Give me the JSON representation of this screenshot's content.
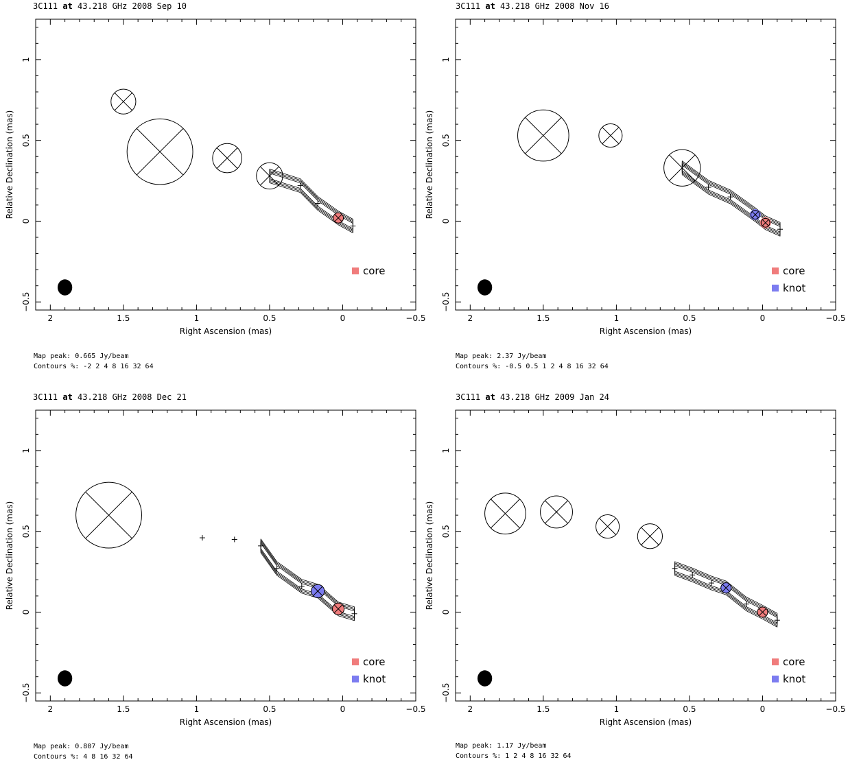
{
  "panels": [
    {
      "title_source": "3C111",
      "title_at": "at",
      "title_freq": "43.218 GHz",
      "title_date": "2008 Sep 10",
      "footer_peak": "Map peak: 0.665 Jy/beam",
      "footer_contours": "Contours %: -2 2 4 8 16 32 64",
      "legend": [
        {
          "label": "core",
          "color": "#f07c7c"
        }
      ]
    },
    {
      "title_source": "3C111",
      "title_at": "at",
      "title_freq": "43.218 GHz",
      "title_date": "2008 Nov 16",
      "footer_peak": "Map peak: 2.37 Jy/beam",
      "footer_contours": "Contours %: -0.5 0.5 1 2 4 8 16 32 64",
      "legend": [
        {
          "label": "core",
          "color": "#f07c7c"
        },
        {
          "label": "knot",
          "color": "#7c7cf0"
        }
      ]
    },
    {
      "title_source": "3C111",
      "title_at": "at",
      "title_freq": "43.218 GHz",
      "title_date": "2008 Dec 21",
      "footer_peak": "Map peak: 0.807 Jy/beam",
      "footer_contours": "Contours %: 4 8 16 32 64",
      "legend": [
        {
          "label": "core",
          "color": "#f07c7c"
        },
        {
          "label": "knot",
          "color": "#7c7cf0"
        }
      ]
    },
    {
      "title_source": "3C111",
      "title_at": "at",
      "title_freq": "43.218 GHz",
      "title_date": "2009 Jan 24",
      "footer_peak": "Map peak: 1.17 Jy/beam",
      "footer_contours": "Contours %: 1 2 4 8 16 32 64",
      "legend": [
        {
          "label": "core",
          "color": "#f07c7c"
        },
        {
          "label": "knot",
          "color": "#7c7cf0"
        }
      ]
    }
  ],
  "chart_data": [
    {
      "type": "scatter",
      "title": "3C111 at 43.218 GHz 2008 Sep 10",
      "xlabel": "Right Ascension  (mas)",
      "ylabel": "Relative Declination  (mas)",
      "xlim": [
        2.1,
        -0.5
      ],
      "ylim": [
        -0.55,
        1.25
      ],
      "xticks": [
        "2",
        "1.5",
        "1",
        "0.5",
        "0",
        "−0.5"
      ],
      "xtick_values": [
        2,
        1.5,
        1,
        0.5,
        0,
        -0.5
      ],
      "yticks": [
        "−0.5",
        "0",
        "0.5",
        "1"
      ],
      "ytick_values": [
        -0.5,
        0,
        0.5,
        1
      ],
      "beam": {
        "x": 1.9,
        "y": -0.41,
        "major": 0.1,
        "minor": 0.1
      },
      "components": [
        {
          "x": 0.03,
          "y": 0.02,
          "size": 0.07,
          "kind": "core"
        },
        {
          "x": -0.07,
          "y": -0.03,
          "size": 0.005
        },
        {
          "x": 0.17,
          "y": 0.11,
          "size": 0.02
        },
        {
          "x": 0.29,
          "y": 0.22,
          "size": 0.03
        },
        {
          "x": 0.5,
          "y": 0.28,
          "size": 0.18
        },
        {
          "x": 0.79,
          "y": 0.39,
          "size": 0.2
        },
        {
          "x": 1.25,
          "y": 0.43,
          "size": 0.45
        },
        {
          "x": 1.5,
          "y": 0.74,
          "size": 0.17
        }
      ],
      "legend": [
        "core"
      ]
    },
    {
      "type": "scatter",
      "title": "3C111 at 43.218 GHz 2008 Nov 16",
      "xlabel": "Right Ascension  (mas)",
      "ylabel": "Relative Declination  (mas)",
      "xlim": [
        2.1,
        -0.5
      ],
      "ylim": [
        -0.55,
        1.25
      ],
      "xticks": [
        "2",
        "1.5",
        "1",
        "0.5",
        "0",
        "−0.5"
      ],
      "xtick_values": [
        2,
        1.5,
        1,
        0.5,
        0,
        -0.5
      ],
      "yticks": [
        "−0.5",
        "0",
        "0.5",
        "1"
      ],
      "ytick_values": [
        -0.5,
        0,
        0.5,
        1
      ],
      "beam": {
        "x": 1.9,
        "y": -0.41,
        "major": 0.1,
        "minor": 0.1
      },
      "components": [
        {
          "x": -0.02,
          "y": -0.01,
          "size": 0.06,
          "kind": "core"
        },
        {
          "x": 0.05,
          "y": 0.04,
          "size": 0.06,
          "kind": "knot"
        },
        {
          "x": -0.12,
          "y": -0.05,
          "size": 0.005
        },
        {
          "x": 0.22,
          "y": 0.15,
          "size": 0.03
        },
        {
          "x": 0.37,
          "y": 0.21,
          "size": 0.04
        },
        {
          "x": 0.55,
          "y": 0.33,
          "size": 0.25
        },
        {
          "x": 1.04,
          "y": 0.53,
          "size": 0.16
        },
        {
          "x": 1.5,
          "y": 0.53,
          "size": 0.35
        }
      ],
      "legend": [
        "core",
        "knot"
      ]
    },
    {
      "type": "scatter",
      "title": "3C111 at 43.218 GHz 2008 Dec 21",
      "xlabel": "Right Ascension  (mas)",
      "ylabel": "Relative Declination  (mas)",
      "xlim": [
        2.1,
        -0.5
      ],
      "ylim": [
        -0.55,
        1.25
      ],
      "xticks": [
        "2",
        "1.5",
        "1",
        "0.5",
        "0",
        "−0.5"
      ],
      "xtick_values": [
        2,
        1.5,
        1,
        0.5,
        0,
        -0.5
      ],
      "yticks": [
        "−0.5",
        "0",
        "0.5",
        "1"
      ],
      "ytick_values": [
        -0.5,
        0,
        0.5,
        1
      ],
      "beam": {
        "x": 1.9,
        "y": -0.41,
        "major": 0.1,
        "minor": 0.1
      },
      "components": [
        {
          "x": 0.03,
          "y": 0.02,
          "size": 0.08,
          "kind": "core"
        },
        {
          "x": 0.17,
          "y": 0.13,
          "size": 0.09,
          "kind": "knot"
        },
        {
          "x": -0.08,
          "y": -0.01,
          "size": 0.005
        },
        {
          "x": 0.28,
          "y": 0.16,
          "size": 0.005
        },
        {
          "x": 0.45,
          "y": 0.27,
          "size": 0.04
        },
        {
          "x": 0.56,
          "y": 0.41,
          "size": 0.04
        },
        {
          "x": 0.74,
          "y": 0.45,
          "size": 0.04
        },
        {
          "x": 0.96,
          "y": 0.46,
          "size": 0.04
        },
        {
          "x": 1.6,
          "y": 0.6,
          "size": 0.45
        }
      ],
      "legend": [
        "core",
        "knot"
      ]
    },
    {
      "type": "scatter",
      "title": "3C111 at 43.218 GHz 2009 Jan 24",
      "xlabel": "Right Ascension  (mas)",
      "ylabel": "Relative Declination  (mas)",
      "xlim": [
        2.1,
        -0.5
      ],
      "ylim": [
        -0.55,
        1.25
      ],
      "xticks": [
        "2",
        "1.5",
        "1",
        "0.5",
        "0",
        "−0.5"
      ],
      "xtick_values": [
        2,
        1.5,
        1,
        0.5,
        0,
        -0.5
      ],
      "yticks": [
        "−0.5",
        "0",
        "0.5",
        "1"
      ],
      "ytick_values": [
        -0.5,
        0,
        0.5,
        1
      ],
      "beam": {
        "x": 1.9,
        "y": -0.41,
        "major": 0.1,
        "minor": 0.1
      },
      "components": [
        {
          "x": 0.0,
          "y": 0.0,
          "size": 0.07,
          "kind": "core"
        },
        {
          "x": 0.25,
          "y": 0.15,
          "size": 0.07,
          "kind": "knot"
        },
        {
          "x": -0.1,
          "y": -0.05,
          "size": 0.005
        },
        {
          "x": 0.11,
          "y": 0.05,
          "size": 0.005
        },
        {
          "x": 0.35,
          "y": 0.18,
          "size": 0.005
        },
        {
          "x": 0.48,
          "y": 0.23,
          "size": 0.005
        },
        {
          "x": 0.6,
          "y": 0.27,
          "size": 0.005
        },
        {
          "x": 0.77,
          "y": 0.47,
          "size": 0.17
        },
        {
          "x": 1.06,
          "y": 0.53,
          "size": 0.16
        },
        {
          "x": 1.41,
          "y": 0.62,
          "size": 0.22
        },
        {
          "x": 1.76,
          "y": 0.61,
          "size": 0.28
        }
      ],
      "legend": [
        "core",
        "knot"
      ]
    }
  ]
}
